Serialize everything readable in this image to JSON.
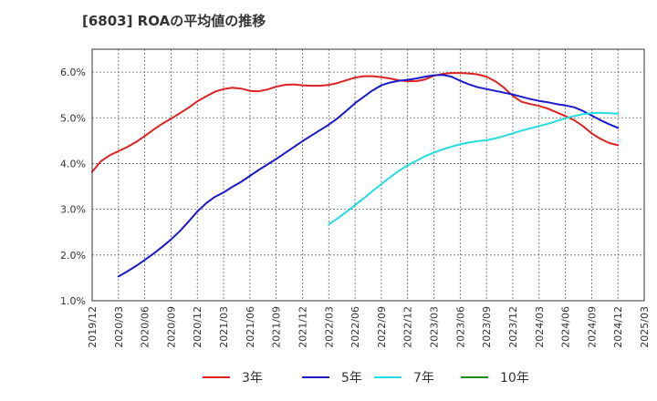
{
  "chart_data": {
    "type": "line",
    "title": "[6803]  ROAの平均値の推移",
    "xlabel": "",
    "ylabel": "",
    "x_ticks": [
      "2019/12",
      "2020/03",
      "2020/06",
      "2020/09",
      "2020/12",
      "2021/03",
      "2021/06",
      "2021/09",
      "2021/12",
      "2022/03",
      "2022/06",
      "2022/09",
      "2022/12",
      "2023/03",
      "2023/06",
      "2023/09",
      "2023/12",
      "2024/03",
      "2024/06",
      "2024/09",
      "2024/12",
      "2025/03"
    ],
    "y_ticks": [
      "1.0%",
      "2.0%",
      "3.0%",
      "4.0%",
      "5.0%",
      "6.0%"
    ],
    "ylim": [
      1.0,
      6.5
    ],
    "grid": true,
    "legend_position": "bottom",
    "series": [
      {
        "name": "3年",
        "color": "#dd2222",
        "values": [
          [
            "2019/12",
            3.82
          ],
          [
            "2020/01",
            4.05
          ],
          [
            "2020/02",
            4.18
          ],
          [
            "2020/03",
            4.27
          ],
          [
            "2020/04",
            4.36
          ],
          [
            "2020/05",
            4.47
          ],
          [
            "2020/06",
            4.6
          ],
          [
            "2020/07",
            4.74
          ],
          [
            "2020/08",
            4.87
          ],
          [
            "2020/09",
            4.98
          ],
          [
            "2020/10",
            5.1
          ],
          [
            "2020/11",
            5.22
          ],
          [
            "2020/12",
            5.36
          ],
          [
            "2021/01",
            5.47
          ],
          [
            "2021/02",
            5.57
          ],
          [
            "2021/03",
            5.63
          ],
          [
            "2021/04",
            5.66
          ],
          [
            "2021/05",
            5.64
          ],
          [
            "2021/06",
            5.59
          ],
          [
            "2021/07",
            5.58
          ],
          [
            "2021/08",
            5.62
          ],
          [
            "2021/09",
            5.68
          ],
          [
            "2021/10",
            5.72
          ],
          [
            "2021/11",
            5.73
          ],
          [
            "2021/12",
            5.71
          ],
          [
            "2022/01",
            5.7
          ],
          [
            "2022/02",
            5.7
          ],
          [
            "2022/03",
            5.72
          ],
          [
            "2022/04",
            5.76
          ],
          [
            "2022/05",
            5.82
          ],
          [
            "2022/06",
            5.88
          ],
          [
            "2022/07",
            5.91
          ],
          [
            "2022/08",
            5.91
          ],
          [
            "2022/09",
            5.89
          ],
          [
            "2022/10",
            5.86
          ],
          [
            "2022/11",
            5.82
          ],
          [
            "2022/12",
            5.8
          ],
          [
            "2023/01",
            5.8
          ],
          [
            "2023/02",
            5.84
          ],
          [
            "2023/03",
            5.92
          ],
          [
            "2023/04",
            5.96
          ],
          [
            "2023/05",
            5.98
          ],
          [
            "2023/06",
            5.98
          ],
          [
            "2023/07",
            5.97
          ],
          [
            "2023/08",
            5.95
          ],
          [
            "2023/09",
            5.9
          ],
          [
            "2023/10",
            5.8
          ],
          [
            "2023/11",
            5.66
          ],
          [
            "2023/12",
            5.48
          ],
          [
            "2024/01",
            5.35
          ],
          [
            "2024/02",
            5.3
          ],
          [
            "2024/03",
            5.26
          ],
          [
            "2024/04",
            5.2
          ],
          [
            "2024/05",
            5.12
          ],
          [
            "2024/06",
            5.04
          ],
          [
            "2024/07",
            4.95
          ],
          [
            "2024/08",
            4.82
          ],
          [
            "2024/09",
            4.66
          ],
          [
            "2024/10",
            4.54
          ],
          [
            "2024/11",
            4.45
          ],
          [
            "2024/12",
            4.4
          ]
        ]
      },
      {
        "name": "5年",
        "color": "#1a1acc",
        "values": [
          [
            "2020/03",
            1.53
          ],
          [
            "2020/04",
            1.64
          ],
          [
            "2020/05",
            1.76
          ],
          [
            "2020/06",
            1.89
          ],
          [
            "2020/07",
            2.03
          ],
          [
            "2020/08",
            2.18
          ],
          [
            "2020/09",
            2.34
          ],
          [
            "2020/10",
            2.52
          ],
          [
            "2020/11",
            2.73
          ],
          [
            "2020/12",
            2.95
          ],
          [
            "2021/01",
            3.13
          ],
          [
            "2021/02",
            3.27
          ],
          [
            "2021/03",
            3.37
          ],
          [
            "2021/04",
            3.49
          ],
          [
            "2021/05",
            3.6
          ],
          [
            "2021/06",
            3.73
          ],
          [
            "2021/07",
            3.86
          ],
          [
            "2021/08",
            3.98
          ],
          [
            "2021/09",
            4.1
          ],
          [
            "2021/10",
            4.23
          ],
          [
            "2021/11",
            4.36
          ],
          [
            "2021/12",
            4.49
          ],
          [
            "2022/01",
            4.61
          ],
          [
            "2022/02",
            4.73
          ],
          [
            "2022/03",
            4.85
          ],
          [
            "2022/04",
            4.99
          ],
          [
            "2022/05",
            5.15
          ],
          [
            "2022/06",
            5.32
          ],
          [
            "2022/07",
            5.46
          ],
          [
            "2022/08",
            5.6
          ],
          [
            "2022/09",
            5.71
          ],
          [
            "2022/10",
            5.77
          ],
          [
            "2022/11",
            5.81
          ],
          [
            "2022/12",
            5.83
          ],
          [
            "2023/01",
            5.86
          ],
          [
            "2023/02",
            5.9
          ],
          [
            "2023/03",
            5.93
          ],
          [
            "2023/04",
            5.94
          ],
          [
            "2023/05",
            5.9
          ],
          [
            "2023/06",
            5.81
          ],
          [
            "2023/07",
            5.73
          ],
          [
            "2023/08",
            5.67
          ],
          [
            "2023/09",
            5.63
          ],
          [
            "2023/10",
            5.59
          ],
          [
            "2023/11",
            5.55
          ],
          [
            "2023/12",
            5.51
          ],
          [
            "2024/01",
            5.46
          ],
          [
            "2024/02",
            5.41
          ],
          [
            "2024/03",
            5.37
          ],
          [
            "2024/04",
            5.34
          ],
          [
            "2024/05",
            5.3
          ],
          [
            "2024/06",
            5.27
          ],
          [
            "2024/07",
            5.23
          ],
          [
            "2024/08",
            5.15
          ],
          [
            "2024/09",
            5.05
          ],
          [
            "2024/10",
            4.95
          ],
          [
            "2024/11",
            4.86
          ],
          [
            "2024/12",
            4.78
          ]
        ]
      },
      {
        "name": "7年",
        "color": "#22dddd",
        "values": [
          [
            "2022/03",
            2.67
          ],
          [
            "2022/04",
            2.8
          ],
          [
            "2022/05",
            2.94
          ],
          [
            "2022/06",
            3.09
          ],
          [
            "2022/07",
            3.24
          ],
          [
            "2022/08",
            3.4
          ],
          [
            "2022/09",
            3.55
          ],
          [
            "2022/10",
            3.7
          ],
          [
            "2022/11",
            3.84
          ],
          [
            "2022/12",
            3.96
          ],
          [
            "2023/01",
            4.06
          ],
          [
            "2023/02",
            4.16
          ],
          [
            "2023/03",
            4.24
          ],
          [
            "2023/04",
            4.31
          ],
          [
            "2023/05",
            4.37
          ],
          [
            "2023/06",
            4.42
          ],
          [
            "2023/07",
            4.46
          ],
          [
            "2023/08",
            4.49
          ],
          [
            "2023/09",
            4.51
          ],
          [
            "2023/10",
            4.55
          ],
          [
            "2023/11",
            4.6
          ],
          [
            "2023/12",
            4.66
          ],
          [
            "2024/01",
            4.72
          ],
          [
            "2024/02",
            4.77
          ],
          [
            "2024/03",
            4.82
          ],
          [
            "2024/04",
            4.87
          ],
          [
            "2024/05",
            4.93
          ],
          [
            "2024/06",
            4.99
          ],
          [
            "2024/07",
            5.04
          ],
          [
            "2024/08",
            5.08
          ],
          [
            "2024/09",
            5.1
          ],
          [
            "2024/10",
            5.11
          ],
          [
            "2024/11",
            5.1
          ],
          [
            "2024/12",
            5.09
          ]
        ]
      },
      {
        "name": "10年",
        "color": "#228822",
        "values": []
      }
    ]
  }
}
